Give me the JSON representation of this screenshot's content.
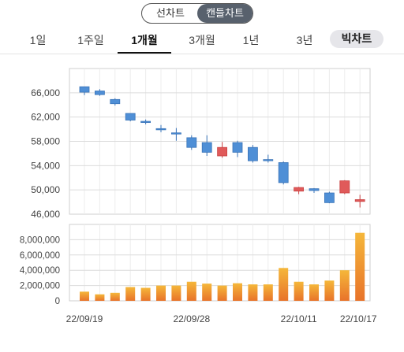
{
  "toggle": {
    "line_label": "선차트",
    "candle_label": "캔들차트",
    "selected": "candle"
  },
  "tabs": [
    {
      "label": "1일"
    },
    {
      "label": "1주일"
    },
    {
      "label": "1개월",
      "active": true
    },
    {
      "label": "3개월"
    },
    {
      "label": "1년"
    },
    {
      "label": "3년"
    },
    {
      "label": "빅차트"
    }
  ],
  "colors": {
    "up": "#e05a5a",
    "down": "#4f8fd6",
    "volume_top": "#f5b73a",
    "volume_bottom": "#e8732a"
  },
  "chart_data": [
    {
      "type": "candlestick",
      "title": "",
      "ylim": [
        46000,
        70000
      ],
      "yticks": [
        "66,000",
        "62,000",
        "58,000",
        "54,000",
        "50,000",
        "46,000"
      ],
      "grid": true,
      "candles": [
        {
          "o": 66100,
          "h": 67000,
          "l": 65600,
          "c": 67000
        },
        {
          "o": 65700,
          "h": 66600,
          "l": 65500,
          "c": 66300
        },
        {
          "o": 64200,
          "h": 65100,
          "l": 63900,
          "c": 64900
        },
        {
          "o": 61500,
          "h": 62600,
          "l": 61300,
          "c": 62600
        },
        {
          "o": 61100,
          "h": 61600,
          "l": 60800,
          "c": 61300
        },
        {
          "o": 59900,
          "h": 60700,
          "l": 59500,
          "c": 60100
        },
        {
          "o": 59300,
          "h": 60200,
          "l": 58100,
          "c": 59400
        },
        {
          "o": 57000,
          "h": 59000,
          "l": 56600,
          "c": 58600
        },
        {
          "o": 56200,
          "h": 59000,
          "l": 55600,
          "c": 57800
        },
        {
          "o": 55600,
          "h": 57900,
          "l": 55300,
          "c": 57000
        },
        {
          "o": 56200,
          "h": 58100,
          "l": 55400,
          "c": 57800
        },
        {
          "o": 54800,
          "h": 57400,
          "l": 54500,
          "c": 57000
        },
        {
          "o": 54900,
          "h": 55800,
          "l": 54500,
          "c": 55000
        },
        {
          "o": 51200,
          "h": 54700,
          "l": 50900,
          "c": 54500
        },
        {
          "o": 49800,
          "h": 50500,
          "l": 49300,
          "c": 50400
        },
        {
          "o": 49900,
          "h": 50300,
          "l": 49500,
          "c": 50200
        },
        {
          "o": 47900,
          "h": 49700,
          "l": 47800,
          "c": 49500
        },
        {
          "o": 49500,
          "h": 51600,
          "l": 49300,
          "c": 51500
        },
        {
          "o": 48100,
          "h": 49200,
          "l": 47100,
          "c": 48400
        }
      ]
    },
    {
      "type": "bar",
      "title": "",
      "ylim": [
        0,
        10000000
      ],
      "yticks": [
        "8,000,000",
        "6,000,000",
        "4,000,000",
        "2,000,000",
        "0"
      ],
      "x_tick_labels": [
        "22/09/19",
        "22/09/28",
        "22/10/11",
        "22/10/17"
      ],
      "grid": true,
      "values": [
        1200000,
        850000,
        1050000,
        1800000,
        1700000,
        2000000,
        2000000,
        2500000,
        2250000,
        2000000,
        2300000,
        2150000,
        2150000,
        4300000,
        2500000,
        2150000,
        2650000,
        4000000,
        8900000
      ]
    }
  ]
}
